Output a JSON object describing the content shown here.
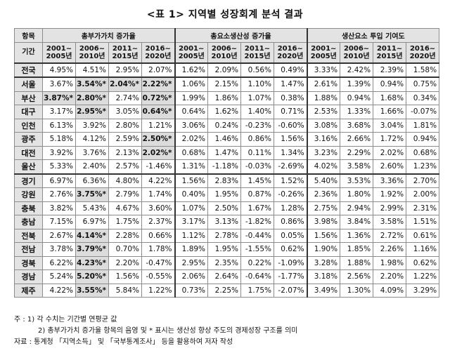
{
  "title": "<표 1> 지역별 성장회계 분석 결과",
  "headers": {
    "item": "항목",
    "period": "기간",
    "groups": [
      "총부가가치 증가율",
      "총요소생산성 증가율",
      "생산요소 투입 기여도"
    ],
    "periods": [
      "2001~\n2005년",
      "2006~\n2010년",
      "2011~\n2015년",
      "2016~\n2020년"
    ]
  },
  "rows": [
    {
      "region": "전국",
      "values": [
        "4.95%",
        "4.51%",
        "2.95%",
        "2.07%",
        "1.62%",
        "2.09%",
        "0.56%",
        "0.49%",
        "3.33%",
        "2.42%",
        "2.39%",
        "1.58%"
      ],
      "hl": []
    },
    {
      "region": "서울",
      "values": [
        "3.67%",
        "3.54%*",
        "2.04%*",
        "2.22%*",
        "1.06%",
        "2.15%",
        "1.10%",
        "1.47%",
        "2.61%",
        "1.39%",
        "0.94%",
        "0.75%"
      ],
      "hl": [
        1,
        2,
        3
      ]
    },
    {
      "region": "부산",
      "values": [
        "3.87%*",
        "2.80%*",
        "2.74%",
        "0.72%*",
        "1.99%",
        "1.86%",
        "1.07%",
        "0.38%",
        "1.88%",
        "0.94%",
        "1.68%",
        "0.34%"
      ],
      "hl": [
        0,
        1,
        3
      ]
    },
    {
      "region": "대구",
      "values": [
        "3.17%",
        "2.95%*",
        "3.05%",
        "0.64%*",
        "0.64%",
        "1.62%",
        "1.40%",
        "0.71%",
        "2.53%",
        "1.33%",
        "1.66%",
        "-0.07%"
      ],
      "hl": [
        1,
        3
      ]
    },
    {
      "region": "인천",
      "values": [
        "6.13%",
        "3.92%",
        "2.80%",
        "1.21%",
        "3.06%",
        "0.24%",
        "-0.23%",
        "-0.60%",
        "3.08%",
        "3.68%",
        "3.04%",
        "1.81%"
      ],
      "hl": []
    },
    {
      "region": "광주",
      "values": [
        "5.18%",
        "4.12%",
        "2.59%",
        "2.50%*",
        "2.02%",
        "1.46%",
        "0.86%",
        "1.56%",
        "3.16%",
        "2.66%",
        "1.72%",
        "0.94%"
      ],
      "hl": [
        3
      ]
    },
    {
      "region": "대전",
      "values": [
        "3.92%",
        "3.76%",
        "2.13%",
        "2.02%*",
        "0.68%",
        "1.47%",
        "0.11%",
        "1.34%",
        "3.23%",
        "2.29%",
        "2.02%",
        "0.68%"
      ],
      "hl": [
        3
      ]
    },
    {
      "region": "울산",
      "values": [
        "5.33%",
        "2.40%",
        "2.57%",
        "-1.46%",
        "1.31%",
        "-1.18%",
        "-0.03%",
        "-2.69%",
        "4.02%",
        "3.58%",
        "2.60%",
        "1.23%"
      ],
      "hl": []
    },
    {
      "region": "경기",
      "values": [
        "6.97%",
        "6.36%",
        "4.80%",
        "4.22%",
        "1.56%",
        "2.83%",
        "1.45%",
        "1.52%",
        "5.40%",
        "3.53%",
        "3.36%",
        "2.70%"
      ],
      "hl": []
    },
    {
      "region": "강원",
      "values": [
        "2.76%",
        "3.75%*",
        "2.79%",
        "1.74%",
        "0.40%",
        "1.95%",
        "0.87%",
        "-0.26%",
        "2.36%",
        "1.80%",
        "1.92%",
        "2.00%"
      ],
      "hl": [
        1
      ]
    },
    {
      "region": "충북",
      "values": [
        "3.82%",
        "5.43%",
        "4.67%",
        "3.60%",
        "1.07%",
        "2.50%",
        "1.67%",
        "1.28%",
        "2.75%",
        "2.94%",
        "2.99%",
        "2.31%"
      ],
      "hl": []
    },
    {
      "region": "충남",
      "values": [
        "7.15%",
        "6.97%",
        "1.75%",
        "2.37%",
        "3.17%",
        "3.13%",
        "-1.82%",
        "0.86%",
        "3.98%",
        "3.84%",
        "3.58%",
        "1.51%"
      ],
      "hl": []
    },
    {
      "region": "전북",
      "values": [
        "2.67%",
        "4.14%*",
        "2.28%",
        "0.66%",
        "1.12%",
        "2.78%",
        "-0.44%",
        "0.05%",
        "1.56%",
        "1.36%",
        "2.72%",
        "0.61%"
      ],
      "hl": [
        1
      ]
    },
    {
      "region": "전남",
      "values": [
        "3.78%",
        "3.79%*",
        "0.70%",
        "1.78%",
        "1.89%",
        "1.95%",
        "-1.55%",
        "0.62%",
        "1.90%",
        "1.85%",
        "2.26%",
        "1.16%"
      ],
      "hl": [
        1
      ]
    },
    {
      "region": "경북",
      "values": [
        "6.22%",
        "4.23%*",
        "2.20%",
        "-0.47%",
        "2.95%",
        "2.35%",
        "0.22%",
        "-1.09%",
        "3.28%",
        "1.88%",
        "1.98%",
        "0.62%"
      ],
      "hl": [
        1
      ]
    },
    {
      "region": "경남",
      "values": [
        "5.24%",
        "5.20%*",
        "1.56%",
        "-0.55%",
        "2.06%",
        "2.64%",
        "-0.64%",
        "-1.77%",
        "3.18%",
        "2.56%",
        "2.20%",
        "1.22%"
      ],
      "hl": [
        1
      ]
    },
    {
      "region": "제주",
      "values": [
        "4.22%",
        "3.55%*",
        "5.84%",
        "1.22%",
        "0.73%",
        "2.25%",
        "1.75%",
        "-2.07%",
        "3.49%",
        "1.30%",
        "4.09%",
        "3.29%"
      ],
      "hl": [
        1
      ]
    }
  ],
  "notes": {
    "note1": "주 : 1) 각 수치는 기간별 연평균 값",
    "note2": "2) 총부가가치 증가율 항목의 음영 및 * 표시는 생산성 향상 주도의 경제성장 구조를 의미",
    "source": "자료 : 통계청 「지역소득」 및 「국부통계조사」 등을 활용하여 저자 작성"
  }
}
